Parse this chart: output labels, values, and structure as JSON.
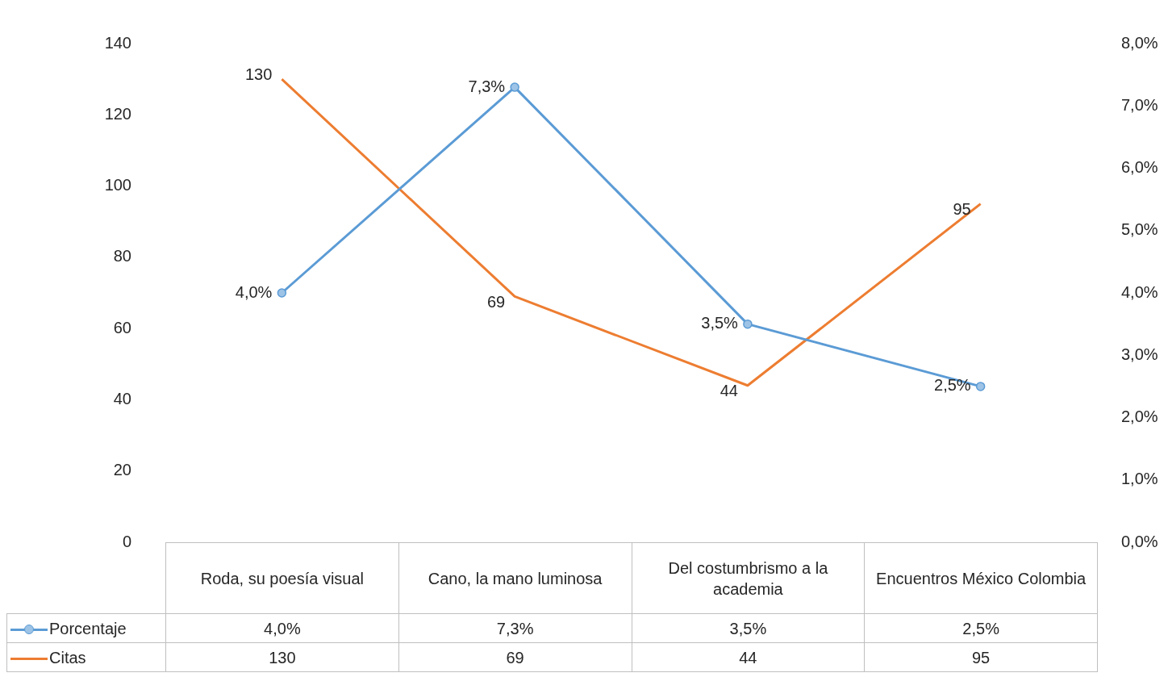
{
  "chart_data": {
    "type": "line",
    "categories": [
      "Roda, su poesía visual",
      "Cano, la mano luminosa",
      "Del costumbrismo a la academia",
      "Encuentros México Colombia"
    ],
    "series": [
      {
        "name": "Porcentaje",
        "color": "#5b9bd5",
        "axis": "y2",
        "marker": "circle",
        "values": [
          4.0,
          7.3,
          3.5,
          2.5
        ],
        "value_labels": [
          "4,0%",
          "7,3%",
          "3,5%",
          "2,5%"
        ]
      },
      {
        "name": "Citas",
        "color": "#ed7d31",
        "axis": "y",
        "marker": "none",
        "values": [
          130,
          69,
          44,
          95
        ],
        "value_labels": [
          "130",
          "69",
          "44",
          "95"
        ]
      }
    ],
    "ylim": [
      0,
      140
    ],
    "yticks": [
      0,
      20,
      40,
      60,
      80,
      100,
      120,
      140
    ],
    "y2lim": [
      0,
      8
    ],
    "y2ticks": [
      {
        "value": 0,
        "label": "0,0%"
      },
      {
        "value": 1,
        "label": "1,0%"
      },
      {
        "value": 2,
        "label": "2,0%"
      },
      {
        "value": 3,
        "label": "3,0%"
      },
      {
        "value": 4,
        "label": "4,0%"
      },
      {
        "value": 5,
        "label": "5,0%"
      },
      {
        "value": 6,
        "label": "6,0%"
      },
      {
        "value": 7,
        "label": "7,0%"
      },
      {
        "value": 8,
        "label": "8,0%"
      }
    ],
    "grid": false,
    "legend": "bottom"
  }
}
